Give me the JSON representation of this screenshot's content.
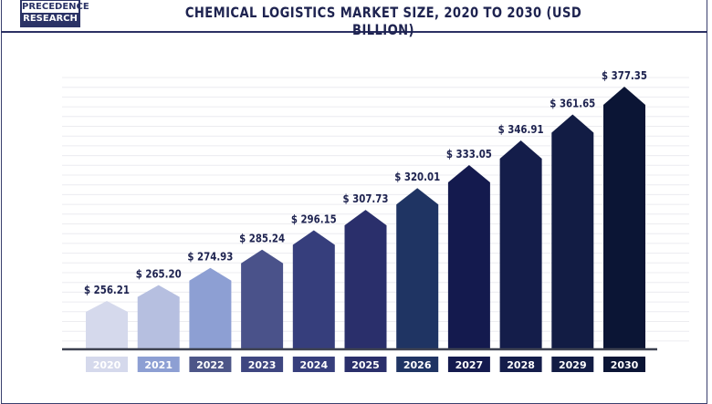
{
  "logo": {
    "line1": "PRECEDENCE",
    "line2": "RESEARCH"
  },
  "chart_data": {
    "type": "bar",
    "title": "CHEMICAL LOGISTICS MARKET SIZE, 2020 TO 2030 (USD BILLION)",
    "xlabel": "",
    "ylabel": "",
    "categories": [
      "2020",
      "2021",
      "2022",
      "2023",
      "2024",
      "2025",
      "2026",
      "2027",
      "2028",
      "2029",
      "2030"
    ],
    "values": [
      256.21,
      265.2,
      274.93,
      285.24,
      296.15,
      307.73,
      320.01,
      333.05,
      346.91,
      361.65,
      377.35
    ],
    "data_labels": [
      "$ 256.21",
      "$ 265.20",
      "$ 274.93",
      "$ 285.24",
      "$ 296.15",
      "$ 307.73",
      "$ 320.01",
      "$ 333.05",
      "$ 346.91",
      "$ 361.65",
      "$ 377.35"
    ],
    "bar_colors": [
      "#d5d9ec",
      "#b6bfe0",
      "#8d9fd3",
      "#4a528a",
      "#363e7c",
      "#2a2f6b",
      "#1f3463",
      "#141a4e",
      "#141d4a",
      "#121c44",
      "#0b1535"
    ],
    "label_box_colors": [
      "#d5d9ec",
      "#8d9fd3",
      "#4d5688",
      "#3e4680",
      "#363e7c",
      "#2a2f6b",
      "#1f3463",
      "#141a4e",
      "#141d4a",
      "#121c44",
      "#0b1535"
    ],
    "grid": true,
    "bar_shape": "arrow-pentagon"
  }
}
